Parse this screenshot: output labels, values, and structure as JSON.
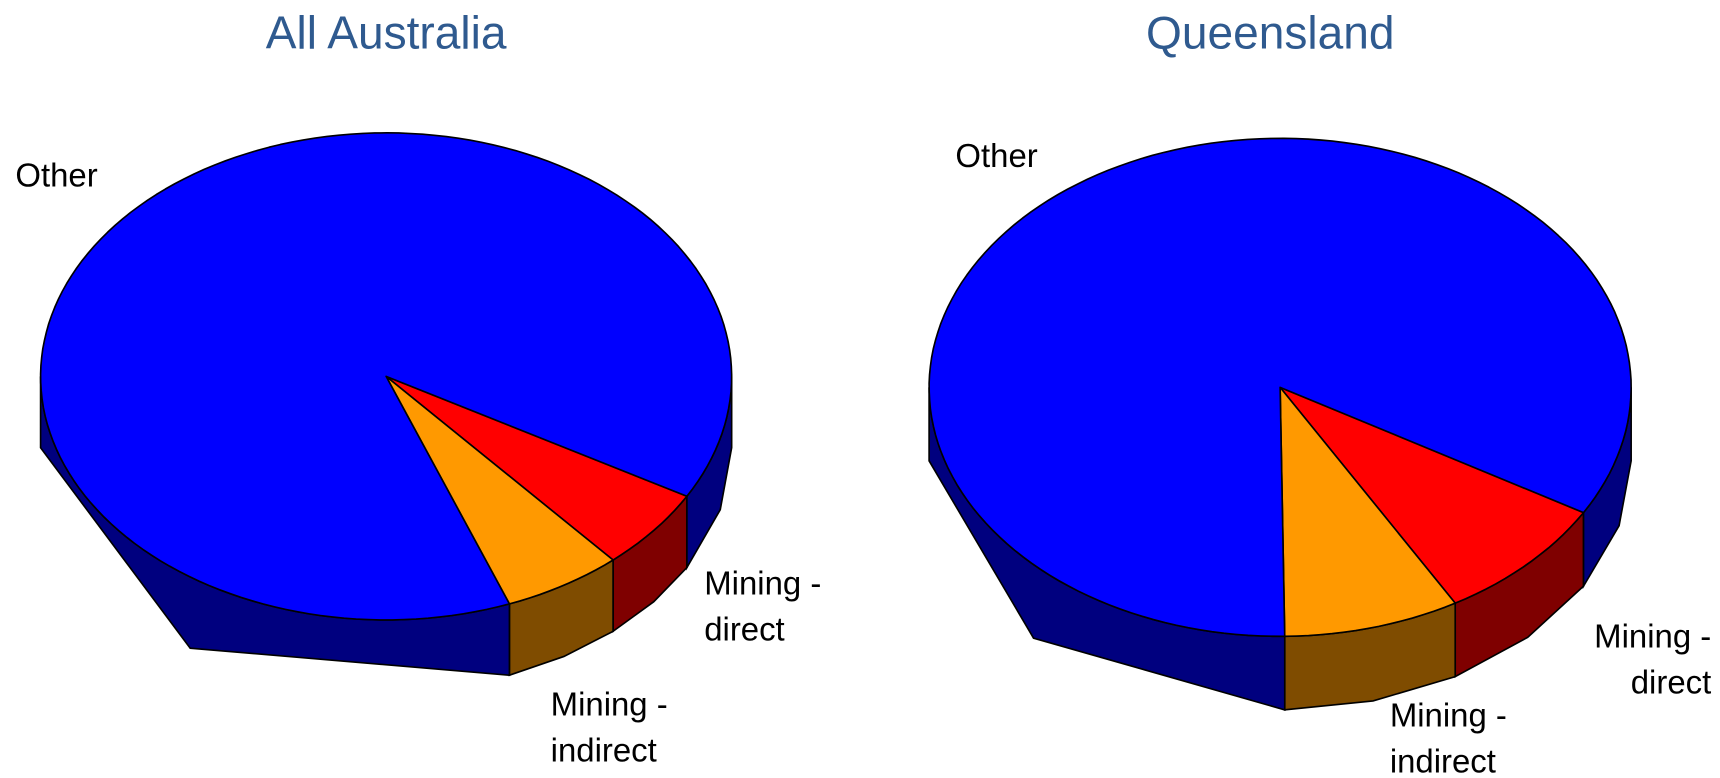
{
  "chart_data": [
    {
      "type": "pie",
      "title": "All Australia",
      "categories": [
        "Mining - direct",
        "Mining - indirect",
        "Other"
      ],
      "values": [
        5.4,
        5.6,
        89
      ],
      "colors": [
        "#ff0000",
        "#ff9900",
        "#0000ff"
      ]
    },
    {
      "type": "pie",
      "title": "Queensland",
      "categories": [
        "Mining - direct",
        "Mining - indirect",
        "Other"
      ],
      "values": [
        8.3,
        8.1,
        83.6
      ],
      "colors": [
        "#ff0000",
        "#ff9900",
        "#0000ff"
      ]
    }
  ]
}
